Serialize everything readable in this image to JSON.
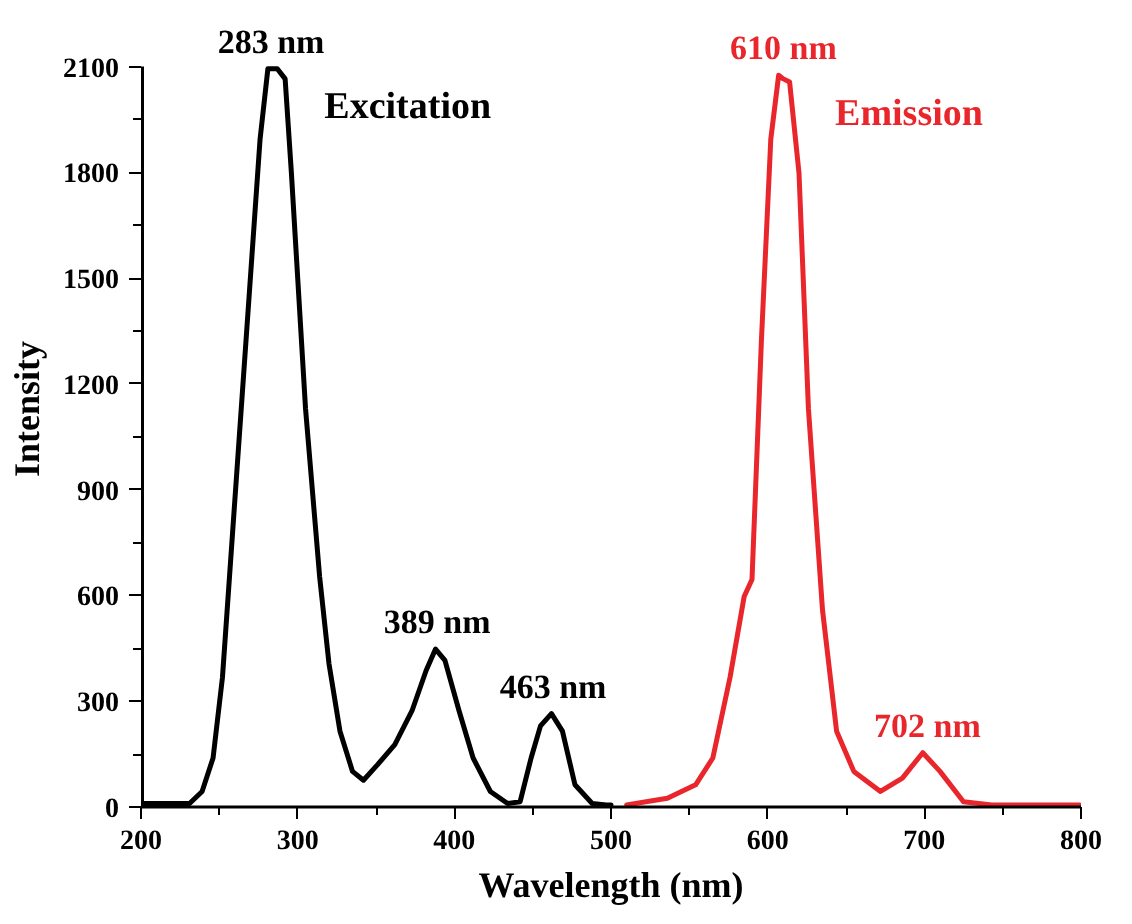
{
  "chart_data": {
    "type": "line",
    "xlabel": "Wavelength (nm)",
    "ylabel": "Intensity",
    "xlim": [
      200,
      800
    ],
    "ylim": [
      0,
      2100
    ],
    "xticks": [
      200,
      300,
      400,
      500,
      600,
      700,
      800
    ],
    "yticks": [
      0,
      300,
      600,
      900,
      1200,
      1500,
      1800,
      2100
    ],
    "grid": false,
    "legend": false,
    "marker": "none",
    "line_style": "solid",
    "series": [
      {
        "name": "Excitation",
        "color": "#000000",
        "x": [
          200,
          231,
          239,
          246,
          252,
          261,
          270,
          276,
          281,
          287,
          292,
          296,
          305,
          314,
          320,
          327,
          335,
          342,
          351,
          362,
          373,
          382,
          388,
          394,
          403,
          412,
          423,
          434,
          442,
          449,
          455,
          462,
          469,
          477,
          488,
          497,
          500
        ],
        "values": [
          10,
          10,
          44,
          139,
          368,
          940,
          1512,
          1894,
          2094,
          2094,
          2065,
          1798,
          1131,
          654,
          406,
          215,
          101,
          76,
          120,
          177,
          273,
          387,
          448,
          416,
          273,
          139,
          44,
          10,
          15,
          139,
          230,
          265,
          215,
          63,
          10,
          6,
          6
        ]
      },
      {
        "name": "Emission",
        "color": "#e8262b",
        "x": [
          510,
          536,
          554,
          565,
          576,
          585,
          590,
          596,
          602,
          607,
          610,
          614,
          620,
          626,
          635,
          644,
          655,
          672,
          686,
          699,
          710,
          725,
          743,
          799
        ],
        "values": [
          6,
          25,
          63,
          139,
          368,
          597,
          645,
          1322,
          1894,
          2075,
          2065,
          2056,
          1798,
          1131,
          559,
          215,
          101,
          44,
          82,
          154,
          101,
          15,
          6,
          6
        ]
      }
    ],
    "annotations": [
      {
        "text": "283 nm",
        "x": 283,
        "y": 2094
      },
      {
        "text": "389 nm",
        "x": 389,
        "y": 448
      },
      {
        "text": "463 nm",
        "x": 463,
        "y": 265
      },
      {
        "text": "610 nm",
        "x": 610,
        "y": 2075
      },
      {
        "text": "702 nm",
        "x": 702,
        "y": 154
      }
    ]
  }
}
